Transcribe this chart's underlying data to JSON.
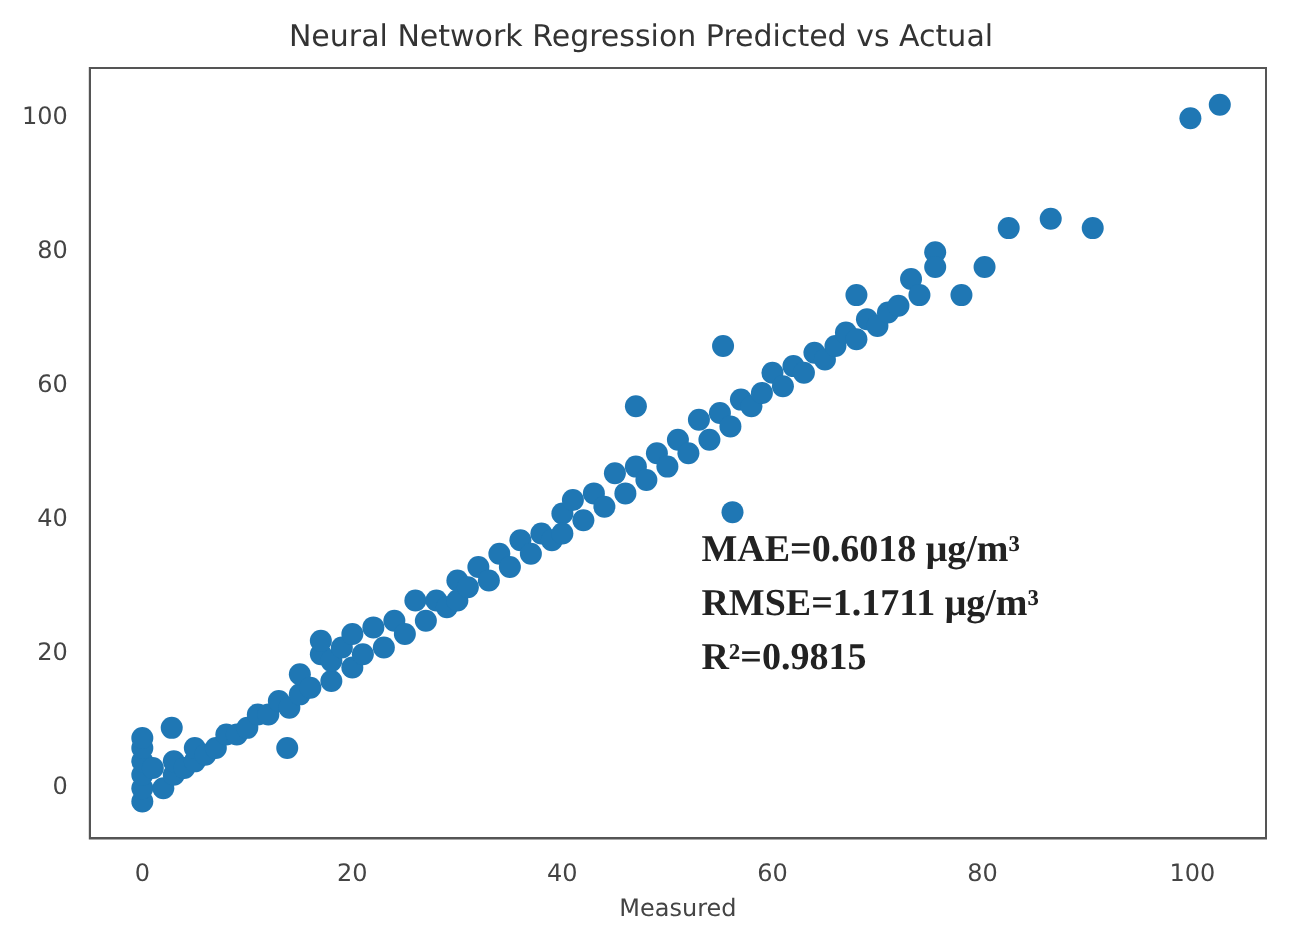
{
  "chart_data": {
    "type": "scatter",
    "title": "Neural Network Regression Predicted vs Actual",
    "xlabel": "Measured",
    "annotations": [
      "MAE=0.6018 μg/m³",
      "RMSE=1.1711 μg/m³",
      "R²=0.9815"
    ],
    "x": [
      0,
      0,
      0,
      0,
      0,
      1,
      2,
      3,
      3,
      4,
      5,
      5,
      6,
      7,
      8,
      9,
      10,
      11,
      12,
      13,
      14,
      15,
      15,
      16,
      17,
      17,
      18,
      18,
      19,
      20,
      20,
      21,
      22,
      23,
      24,
      25,
      26,
      27,
      28,
      29,
      30,
      30,
      31,
      32,
      33,
      34,
      35,
      36,
      37,
      38,
      39,
      40,
      40,
      41,
      42,
      43,
      44,
      45,
      46,
      47,
      48,
      49,
      50,
      51,
      52,
      53,
      54,
      55,
      56,
      57,
      58,
      59,
      60,
      61,
      62,
      63,
      64,
      65,
      66,
      67,
      68,
      69,
      70,
      71,
      72,
      0,
      2.8,
      13.8,
      56.2,
      47,
      55.3,
      68,
      73.2,
      74,
      75.5,
      75.5,
      78,
      80.2,
      82.5,
      86.5,
      90.5,
      99.8,
      102.6
    ],
    "series": [
      {
        "color": "#1f77b4",
        "values": [
          -2,
          0,
          2,
          4,
          6,
          3,
          0,
          2,
          4,
          3,
          4,
          6,
          5,
          6,
          8,
          8,
          9,
          11,
          11,
          13,
          12,
          14,
          17,
          15,
          20,
          22,
          16,
          19,
          21,
          18,
          23,
          20,
          24,
          21,
          25,
          23,
          28,
          25,
          28,
          27,
          31,
          28,
          30,
          33,
          31,
          35,
          33,
          37,
          35,
          38,
          37,
          41,
          38,
          43,
          40,
          44,
          42,
          47,
          44,
          48,
          46,
          50,
          48,
          52,
          50,
          55,
          52,
          56,
          54,
          58,
          57,
          59,
          62,
          60,
          63,
          62,
          65,
          64,
          66,
          68,
          67,
          70,
          69,
          71,
          72,
          7.5,
          9,
          6,
          41.2,
          57,
          66,
          73.6,
          76,
          73.6,
          80,
          77.8,
          73.6,
          77.8,
          83.6,
          85,
          83.6,
          100,
          102
        ]
      }
    ],
    "xlim": [
      -5,
      107
    ],
    "ylim": [
      -7.5,
      107.5
    ],
    "xticks": [
      0,
      20,
      40,
      60,
      80,
      100
    ],
    "yticks": [
      0,
      20,
      40,
      60,
      80,
      100
    ],
    "marker": "circle",
    "grid": false,
    "legend": false
  }
}
